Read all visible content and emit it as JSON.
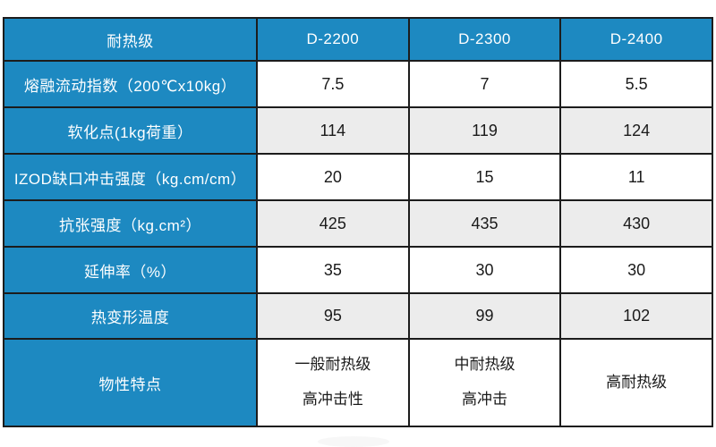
{
  "chart_data": {
    "type": "table",
    "corner_label": "耐热级",
    "columns": [
      "D-2200",
      "D-2300",
      "D-2400"
    ],
    "rows": [
      {
        "label": "熔融流动指数（200℃x10kg）",
        "values": [
          7.5,
          7,
          5.5
        ]
      },
      {
        "label": "软化点(1kg荷重）",
        "values": [
          114,
          119,
          124
        ]
      },
      {
        "label": "IZOD缺口冲击强度（kg.cm/cm）",
        "values": [
          20,
          15,
          11
        ]
      },
      {
        "label": "抗张强度（kg.cm²）",
        "values": [
          425,
          435,
          430
        ]
      },
      {
        "label": "延伸率（%）",
        "values": [
          35,
          30,
          30
        ]
      },
      {
        "label": "热变形温度",
        "values": [
          95,
          99,
          102
        ]
      }
    ],
    "features_row": {
      "label": "物性特点",
      "cells": [
        [
          "一般耐热级",
          "高冲击性"
        ],
        [
          "中耐热级",
          "高冲击"
        ],
        [
          "高耐热级"
        ]
      ]
    },
    "layout_hints": {
      "header_style": "blue band with white text",
      "row_striping": "white / light gray alternating",
      "grid": "black 2px borders"
    }
  },
  "colors": {
    "header_blue": "#1d89c1",
    "row_alt_gray": "#ececec",
    "border_black": "#1c1c1c",
    "text_light": "#ffffff",
    "text_dark": "#1a1a1a"
  }
}
